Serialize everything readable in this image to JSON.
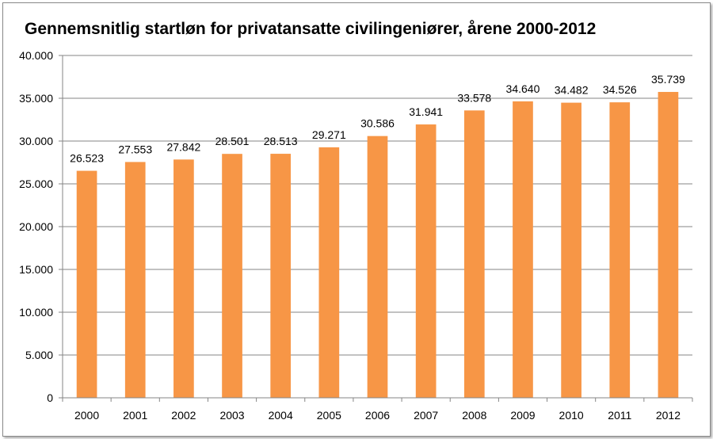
{
  "chart_data": {
    "type": "bar",
    "title": "Gennemsnitlig startløn for privatansatte civilingeniører, årene 2000-2012",
    "xlabel": "",
    "ylabel": "",
    "categories": [
      "2000",
      "2001",
      "2002",
      "2003",
      "2004",
      "2005",
      "2006",
      "2007",
      "2008",
      "2009",
      "2010",
      "2011",
      "2012"
    ],
    "values": [
      26523,
      27553,
      27842,
      28501,
      28513,
      29271,
      30586,
      31941,
      33578,
      34640,
      34482,
      34526,
      35739
    ],
    "value_labels": [
      "26.523",
      "27.553",
      "27.842",
      "28.501",
      "28.513",
      "29.271",
      "30.586",
      "31.941",
      "33.578",
      "34.640",
      "34.482",
      "34.526",
      "35.739"
    ],
    "ylim": [
      0,
      40000
    ],
    "yticks": [
      0,
      5000,
      10000,
      15000,
      20000,
      25000,
      30000,
      35000,
      40000
    ],
    "ytick_labels": [
      "0",
      "5.000",
      "10.000",
      "15.000",
      "20.000",
      "25.000",
      "30.000",
      "35.000",
      "40.000"
    ],
    "grid": true,
    "bar_color": "#F79646",
    "grid_color": "#868686"
  }
}
